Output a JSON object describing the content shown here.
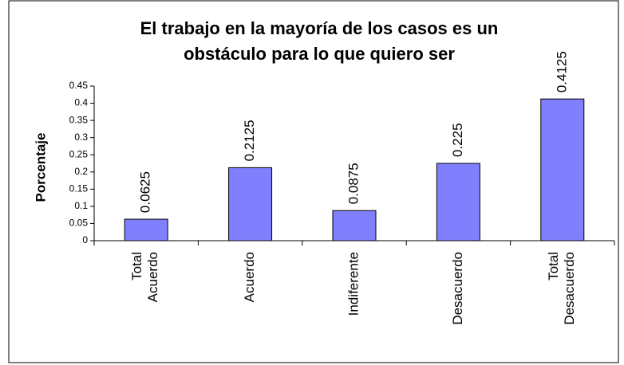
{
  "chart_data": {
    "type": "bar",
    "title": "El trabajo en la mayoría de los casos es un obstáculo para lo que quiero ser",
    "y_label": "Porcentaje",
    "categories": [
      "Total Acuerdo",
      "Acuerdo",
      "Indiferente",
      "Desacuerdo",
      "Total Desacuerdo"
    ],
    "values": [
      0.0625,
      0.2125,
      0.0875,
      0.225,
      0.4125
    ],
    "color": "#8080ff",
    "ylim": [
      0,
      0.45
    ],
    "yticks": [
      0,
      0.05,
      0.1,
      0.15,
      0.2,
      0.25,
      0.3,
      0.35,
      0.4,
      0.45
    ],
    "grid": false
  }
}
